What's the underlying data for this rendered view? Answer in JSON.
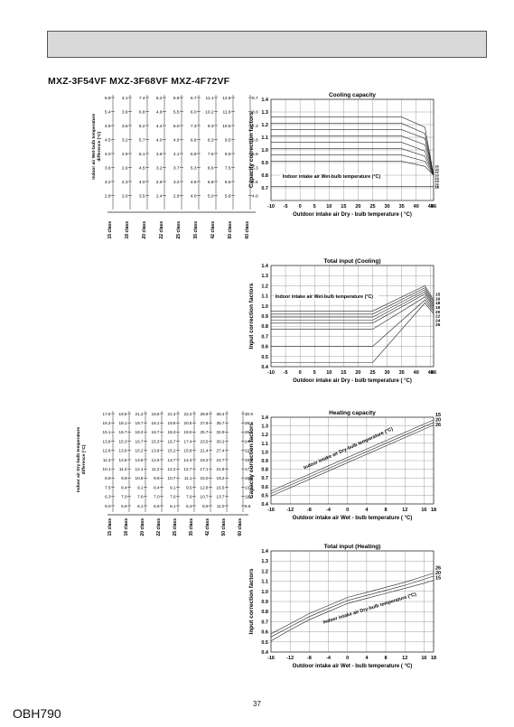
{
  "page": {
    "model_title": "MXZ-3F54VF   MXZ-3F68VF   MXZ-4F72VF",
    "page_number": "37",
    "document_code": "OBH790"
  },
  "nomograms": [
    {
      "id": "cooling",
      "axis_label_lines": [
        "Indoor air Wet-bulb temperature",
        "difference (°C)"
      ],
      "class_labels": [
        "15 class",
        "18 class",
        "20 class",
        "22 class",
        "25 class",
        "35 class",
        "42 class",
        "50 class",
        "60 class"
      ],
      "rows": [
        [
          "5.8",
          "4.1",
          "7.4",
          "5.2",
          "5.9",
          "6.7",
          "11.1",
          "12.8",
          "8.7"
        ],
        [
          "5.4",
          "3.8",
          "6.8",
          "4.8",
          "5.5",
          "6.0",
          "10.2",
          "11.6",
          "8.0"
        ],
        [
          "4.9",
          "3.5",
          "6.2",
          "4.4",
          "5.0",
          "7.3",
          "9.3",
          "10.5",
          "7.3"
        ],
        [
          "4.5",
          "3.2",
          "5.7",
          "4.0",
          "4.6",
          "6.6",
          "8.3",
          "9.5",
          "6.6"
        ],
        [
          "4.0",
          "2.9",
          "5.1",
          "3.6",
          "4.1",
          "5.9",
          "7.5",
          "8.5",
          "5.9"
        ],
        [
          "3.6",
          "2.6",
          "4.5",
          "3.2",
          "3.7",
          "5.3",
          "6.6",
          "7.5",
          "5.3"
        ],
        [
          "3.2",
          "2.3",
          "4.0",
          "2.8",
          "3.2",
          "4.6",
          "5.8",
          "6.6",
          "4.6"
        ],
        [
          "2.8",
          "2.0",
          "3.5",
          "2.4",
          "2.8",
          "4.0",
          "5.0",
          "5.6",
          "4.0"
        ]
      ]
    },
    {
      "id": "heating",
      "axis_label_lines": [
        "Indoor air Dry-bulb temperature",
        "difference (°C)"
      ],
      "class_labels": [
        "15 class",
        "18 class",
        "20 class",
        "22 class",
        "25 class",
        "35 class",
        "42 class",
        "50 class",
        "60 class"
      ],
      "rows": [
        [
          "17.6",
          "19.5",
          "21.2",
          "19.5",
          "21.3",
          "22.2",
          "29.9",
          "38.4",
          "30.9"
        ],
        [
          "16.3",
          "18.1",
          "19.7",
          "18.1",
          "19.8",
          "20.6",
          "27.8",
          "35.7",
          "28.7"
        ],
        [
          "15.1",
          "16.7",
          "18.2",
          "16.7",
          "18.3",
          "19.0",
          "25.7",
          "32.9",
          "26.5"
        ],
        [
          "13.8",
          "15.3",
          "16.7",
          "15.3",
          "16.7",
          "17.4",
          "23.5",
          "30.2",
          "24.3"
        ],
        [
          "12.6",
          "13.9",
          "15.2",
          "13.9",
          "15.2",
          "15.8",
          "21.4",
          "27.4",
          "22.1"
        ],
        [
          "11.3",
          "12.6",
          "13.6",
          "12.6",
          "13.7",
          "14.3",
          "19.2",
          "24.7",
          "19.9"
        ],
        [
          "10.1",
          "11.2",
          "12.1",
          "11.2",
          "12.2",
          "12.7",
          "17.1",
          "21.9",
          "17.7"
        ],
        [
          "8.8",
          "9.8",
          "10.6",
          "9.8",
          "10.7",
          "11.1",
          "15.0",
          "19.2",
          "15.5"
        ],
        [
          "7.5",
          "8.4",
          "9.1",
          "8.4",
          "9.1",
          "9.5",
          "12.8",
          "16.5",
          "13.2"
        ],
        [
          "6.3",
          "7.0",
          "7.6",
          "7.0",
          "7.6",
          "7.9",
          "10.7",
          "13.7",
          "11.0"
        ],
        [
          "5.0",
          "5.6",
          "6.1",
          "5.6",
          "6.1",
          "6.3",
          "8.6",
          "11.0",
          "8.8"
        ]
      ]
    }
  ],
  "chart_data": [
    {
      "id": "cooling-capacity",
      "type": "line",
      "title": "Cooling capacity",
      "xlabel": "Outdoor intake air Dry - bulb temperature ( °C)",
      "ylabel": "Capacity correction factors",
      "xlim": [
        -10,
        46
      ],
      "ylim": [
        0.6,
        1.4
      ],
      "xticks": [
        "-10",
        "-5",
        "0",
        "5",
        "10",
        "15",
        "20",
        "25",
        "30",
        "35",
        "40",
        "45",
        "46"
      ],
      "yticks": [
        "0.7",
        "0.8",
        "0.9",
        "1.0",
        "1.1",
        "1.2",
        "1.3",
        "1.4"
      ],
      "annotation": "Indoor intake air Wet-bulb temperature (°C)",
      "series": [
        {
          "name": "26",
          "x": [
            -10,
            35,
            43,
            46
          ],
          "y": [
            1.26,
            1.26,
            1.18,
            0.8
          ]
        },
        {
          "name": "24",
          "x": [
            -10,
            35,
            43,
            46
          ],
          "y": [
            1.21,
            1.21,
            1.13,
            0.8
          ]
        },
        {
          "name": "22",
          "x": [
            -10,
            35,
            43,
            46
          ],
          "y": [
            1.16,
            1.16,
            1.09,
            0.8
          ]
        },
        {
          "name": "20",
          "x": [
            -10,
            35,
            43,
            46
          ],
          "y": [
            1.11,
            1.11,
            1.04,
            0.8
          ]
        },
        {
          "name": "19",
          "x": [
            -10,
            35,
            43,
            46
          ],
          "y": [
            1.06,
            1.06,
            0.99,
            0.8
          ]
        },
        {
          "name": "18",
          "x": [
            -10,
            35,
            43,
            46
          ],
          "y": [
            1.01,
            1.01,
            0.95,
            0.8
          ]
        },
        {
          "name": "16",
          "x": [
            -10,
            35,
            43,
            46
          ],
          "y": [
            0.96,
            0.96,
            0.91,
            0.8
          ]
        },
        {
          "name": "15",
          "x": [
            -10,
            35,
            43,
            46
          ],
          "y": [
            0.91,
            0.91,
            0.87,
            0.8
          ]
        },
        {
          "name": "14",
          "x": [
            -10,
            46
          ],
          "y": [
            0.71,
            0.71
          ]
        }
      ]
    },
    {
      "id": "cooling-input",
      "type": "line",
      "title": "Total input (Cooling)",
      "xlabel": "Outdoor intake air Dry - bulb temperature ( °C)",
      "ylabel": "Input correction factors",
      "xlim": [
        -10,
        46
      ],
      "ylim": [
        0.4,
        1.4
      ],
      "xticks": [
        "-10",
        "-5",
        "0",
        "5",
        "10",
        "15",
        "20",
        "25",
        "30",
        "35",
        "40",
        "45",
        "46"
      ],
      "yticks": [
        "0.4",
        "0.5",
        "0.6",
        "0.7",
        "0.8",
        "0.9",
        "1.0",
        "1.1",
        "1.2",
        "1.3",
        "1.4"
      ],
      "annotation": "Indoor intake air Wet-bulb temperature (°C)",
      "series": [
        {
          "name": "15",
          "x": [
            -10,
            25,
            43,
            46
          ],
          "y": [
            0.95,
            0.95,
            1.2,
            1.06
          ]
        },
        {
          "name": "16",
          "x": [
            -10,
            25,
            43,
            46
          ],
          "y": [
            0.92,
            0.92,
            1.18,
            1.04
          ]
        },
        {
          "name": "18",
          "x": [
            -10,
            25,
            43,
            46
          ],
          "y": [
            0.89,
            0.89,
            1.16,
            1.02
          ]
        },
        {
          "name": "19",
          "x": [
            -10,
            25,
            43,
            46
          ],
          "y": [
            0.86,
            0.86,
            1.14,
            1.0
          ]
        },
        {
          "name": "20",
          "x": [
            -10,
            25,
            43,
            46
          ],
          "y": [
            0.83,
            0.83,
            1.12,
            0.98
          ]
        },
        {
          "name": "22",
          "x": [
            -10,
            25,
            43,
            46
          ],
          "y": [
            0.77,
            0.77,
            1.09,
            0.96
          ]
        },
        {
          "name": "24",
          "x": [
            -10,
            25,
            43,
            46
          ],
          "y": [
            0.6,
            0.6,
            1.06,
            0.94
          ]
        },
        {
          "name": "26",
          "x": [
            -10,
            25,
            43,
            46
          ],
          "y": [
            0.44,
            0.44,
            1.03,
            0.92
          ]
        }
      ]
    },
    {
      "id": "heating-capacity",
      "type": "line",
      "title": "Heating capacity",
      "xlabel": "Outdoor intake air Wet - bulb temperature ( °C)",
      "ylabel": "Capacity correction factors",
      "xlim": [
        -16,
        18
      ],
      "ylim": [
        0.4,
        1.4
      ],
      "xticks": [
        "-16",
        "-12",
        "-8",
        "-4",
        "0",
        "4",
        "8",
        "12",
        "16",
        "18"
      ],
      "yticks": [
        "0.4",
        "0.5",
        "0.6",
        "0.7",
        "0.8",
        "0.9",
        "1.0",
        "1.1",
        "1.2",
        "1.3",
        "1.4"
      ],
      "annotation": "Indoor intake air Dry-bulb temperature (°C)",
      "series": [
        {
          "name": "15",
          "x": [
            -16,
            18
          ],
          "y": [
            0.55,
            1.37
          ]
        },
        {
          "name": "20",
          "x": [
            -16,
            18
          ],
          "y": [
            0.52,
            1.34
          ]
        },
        {
          "name": "26",
          "x": [
            -16,
            18
          ],
          "y": [
            0.49,
            1.31
          ]
        }
      ]
    },
    {
      "id": "heating-input",
      "type": "line",
      "title": "Total input (Heating)",
      "xlabel": "Outdoor intake air Wet - bulb temperature ( °C)",
      "ylabel": "Input correction factors",
      "xlim": [
        -16,
        18
      ],
      "ylim": [
        0.4,
        1.4
      ],
      "xticks": [
        "-16",
        "-12",
        "-8",
        "-4",
        "0",
        "4",
        "8",
        "12",
        "16",
        "18"
      ],
      "yticks": [
        "0.4",
        "0.5",
        "0.6",
        "0.7",
        "0.8",
        "0.9",
        "1.0",
        "1.1",
        "1.2",
        "1.3",
        "1.4"
      ],
      "annotation": "Indoor intake air Dry-bulb temperature (°C)",
      "series": [
        {
          "name": "26",
          "x": [
            -16,
            -12,
            -8,
            -4,
            0,
            4,
            8,
            12,
            16,
            18
          ],
          "y": [
            0.58,
            0.68,
            0.78,
            0.86,
            0.94,
            0.99,
            1.04,
            1.09,
            1.15,
            1.18
          ]
        },
        {
          "name": "20",
          "x": [
            -16,
            -12,
            -8,
            -4,
            0,
            4,
            8,
            12,
            16,
            18
          ],
          "y": [
            0.55,
            0.65,
            0.75,
            0.83,
            0.91,
            0.96,
            1.01,
            1.06,
            1.12,
            1.15
          ]
        },
        {
          "name": "15",
          "x": [
            -16,
            -12,
            -8,
            -4,
            0,
            4,
            8,
            12,
            16,
            18
          ],
          "y": [
            0.51,
            0.62,
            0.72,
            0.8,
            0.88,
            0.93,
            0.98,
            1.03,
            1.08,
            1.11
          ]
        }
      ]
    }
  ]
}
